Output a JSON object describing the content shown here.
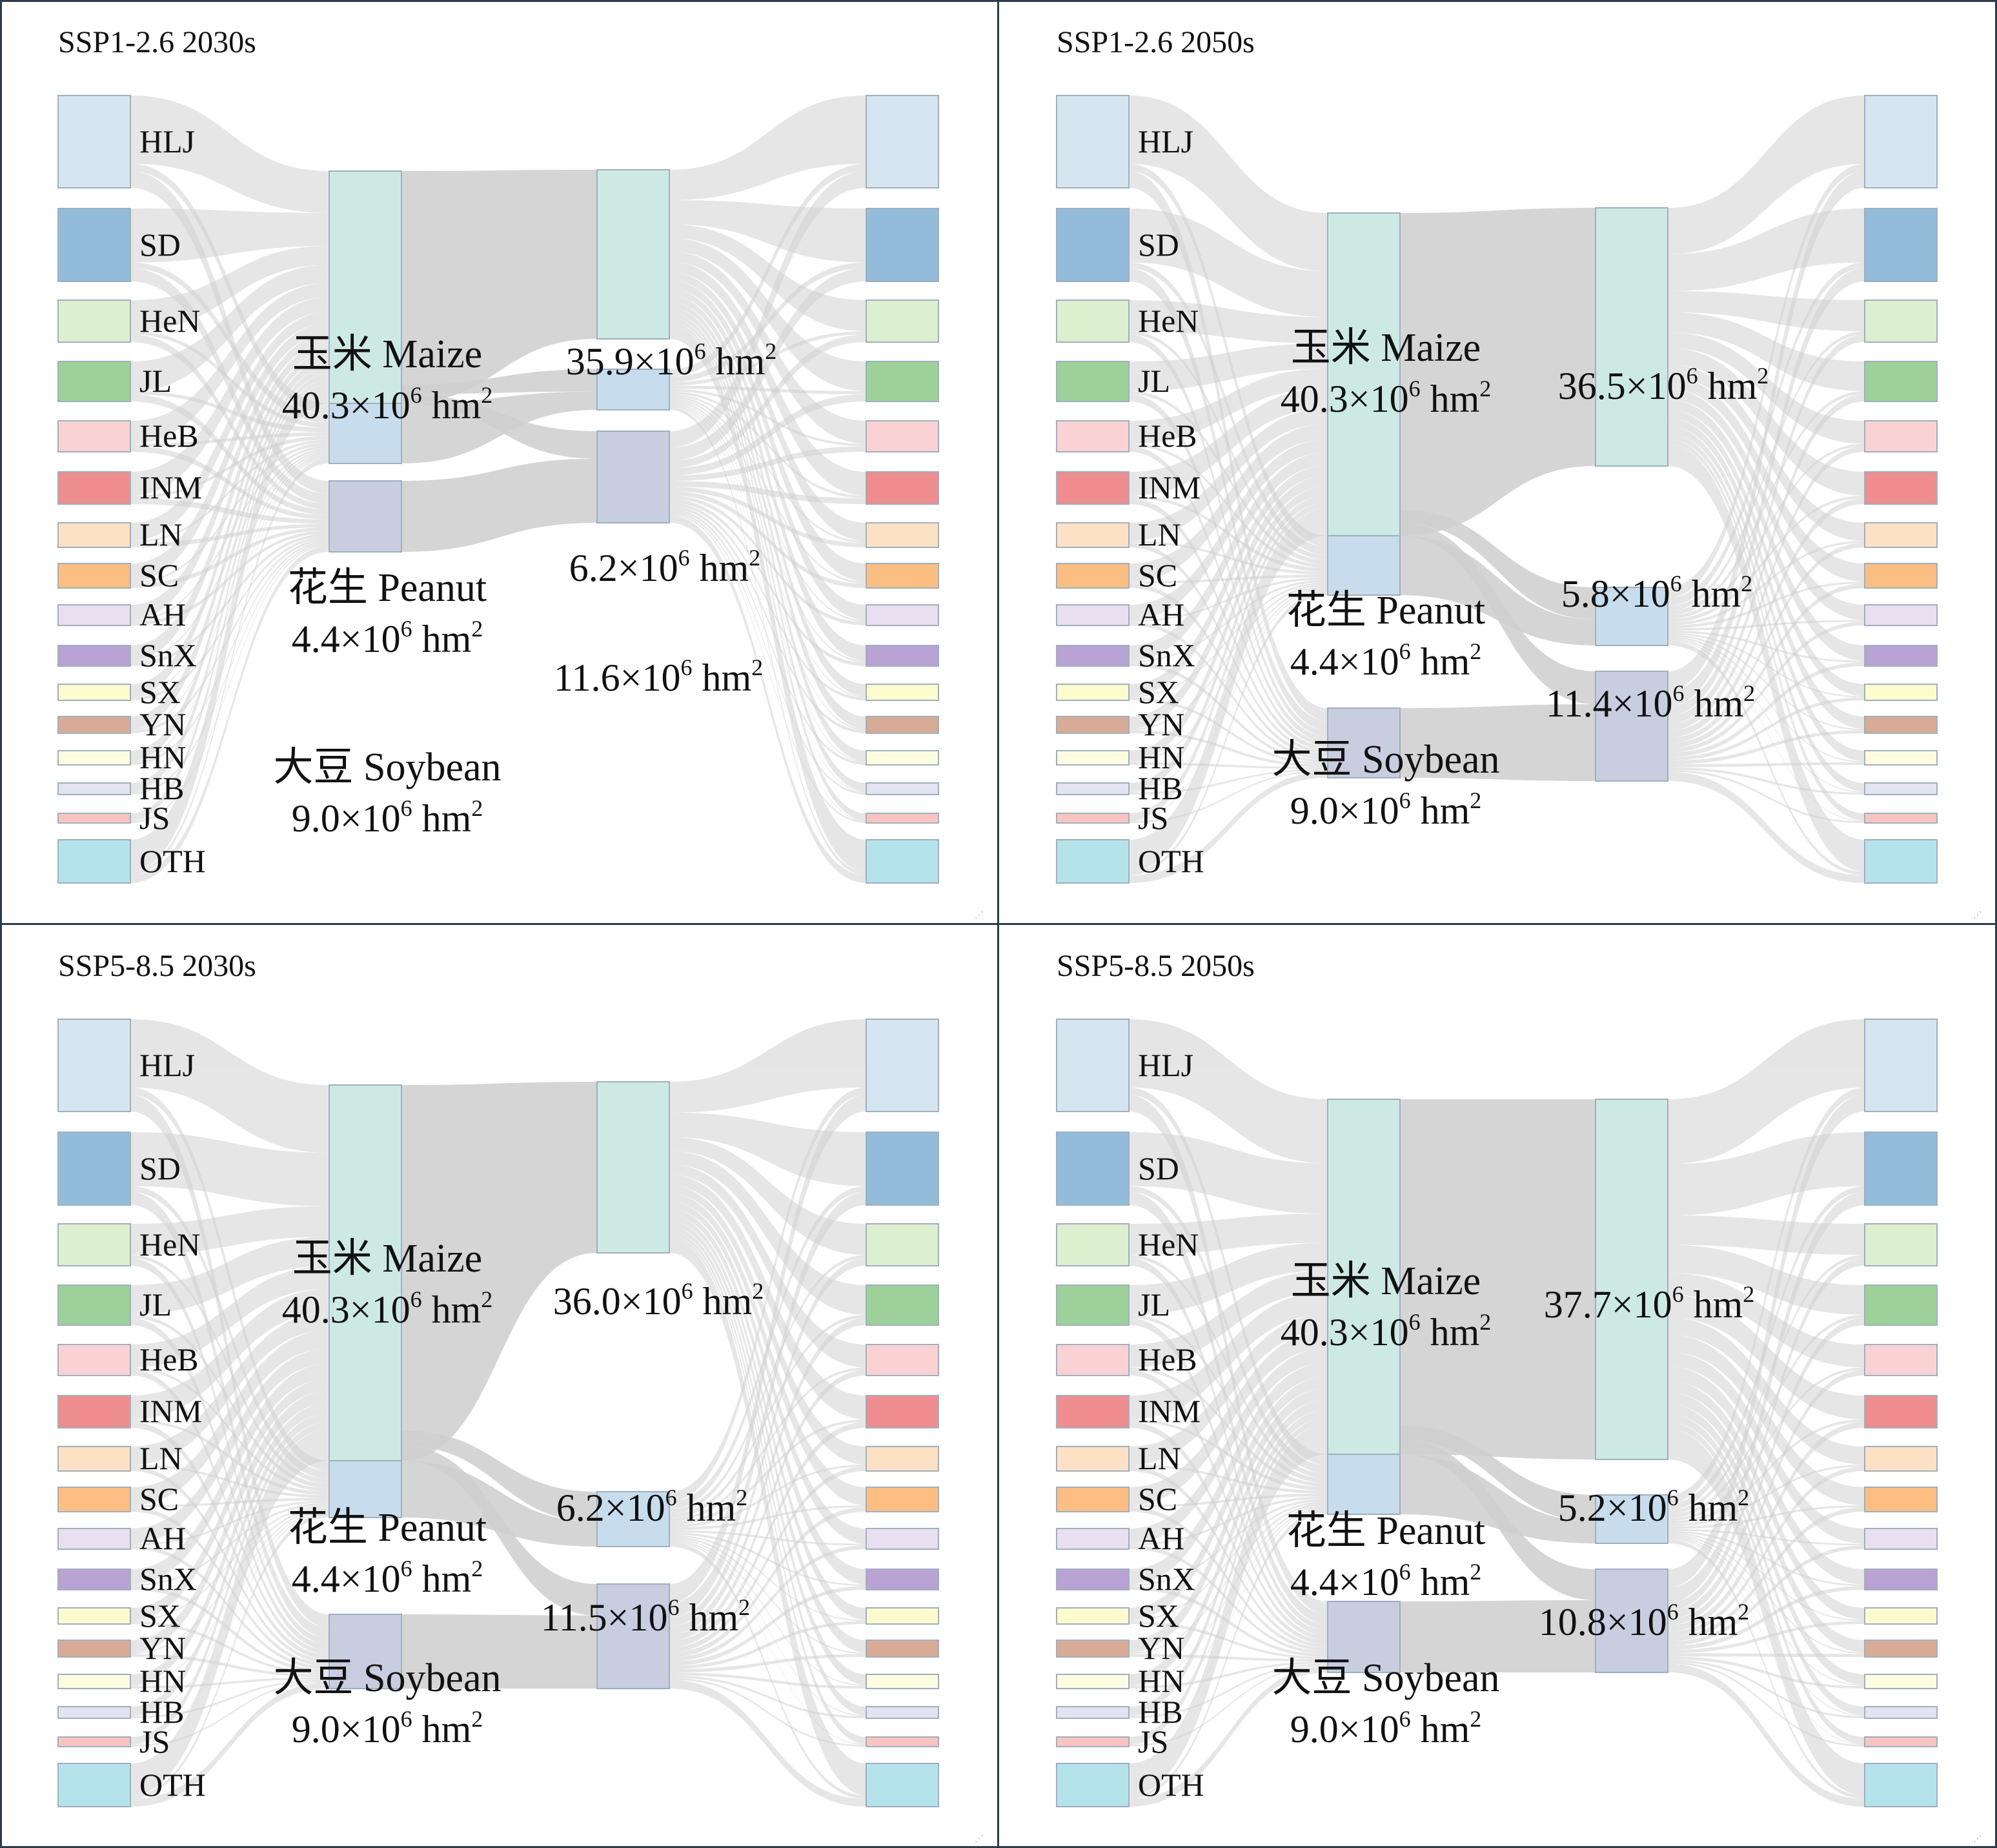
{
  "provinces": [
    "HLJ",
    "SD",
    "HeN",
    "JL",
    "HeB",
    "INM",
    "LN",
    "SC",
    "AH",
    "SnX",
    "SX",
    "YN",
    "HN",
    "HB",
    "JS",
    "OTH"
  ],
  "province_colors": [
    "#d6e6f1",
    "#93bcdb",
    "#dcefcf",
    "#9ed09a",
    "#fbd2d4",
    "#ef8d8f",
    "#fde1c4",
    "#fcbe83",
    "#e8dff0",
    "#b9a2d4",
    "#fcfccf",
    "#d8ab96",
    "#fcfce0",
    "#e3e3f1",
    "#f8c4bf",
    "#b5e3ec"
  ],
  "crop_colors": {
    "maize": "#cde9e3",
    "peanut": "#c7dced",
    "soybean": "#c8cde0"
  },
  "flow_color": "#c8c8c8",
  "panels": [
    {
      "title": "SSP1-2.6 2030s",
      "maize": {
        "name": "玉米 Maize",
        "area": "40.3",
        "future_area": "35.9"
      },
      "peanut": {
        "name": "花生 Peanut",
        "area": "4.4",
        "future_area": "6.2"
      },
      "soybean": {
        "name": "大豆 Soybean",
        "area": "9.0",
        "future_area": "11.6"
      }
    },
    {
      "title": "SSP1-2.6 2050s",
      "maize": {
        "name": "玉米 Maize",
        "area": "40.3",
        "future_area": "36.5"
      },
      "peanut": {
        "name": "花生 Peanut",
        "area": "4.4",
        "future_area": "5.8"
      },
      "soybean": {
        "name": "大豆 Soybean",
        "area": "9.0",
        "future_area": "11.4"
      }
    },
    {
      "title": "SSP5-8.5 2030s",
      "maize": {
        "name": "玉米 Maize",
        "area": "40.3",
        "future_area": "36.0"
      },
      "peanut": {
        "name": "花生 Peanut",
        "area": "4.4",
        "future_area": "6.2"
      },
      "soybean": {
        "name": "大豆 Soybean",
        "area": "9.0",
        "future_area": "11.5"
      }
    },
    {
      "title": "SSP5-8.5 2050s",
      "maize": {
        "name": "玉米 Maize",
        "area": "40.3",
        "future_area": "37.7"
      },
      "peanut": {
        "name": "花生 Peanut",
        "area": "4.4",
        "future_area": "5.2"
      },
      "soybean": {
        "name": "大豆 Soybean",
        "area": "9.0",
        "future_area": "10.8"
      }
    }
  ],
  "unit": {
    "mult": "×10",
    "exp": "6",
    "hm": " hm",
    "hm_exp": "2"
  }
}
